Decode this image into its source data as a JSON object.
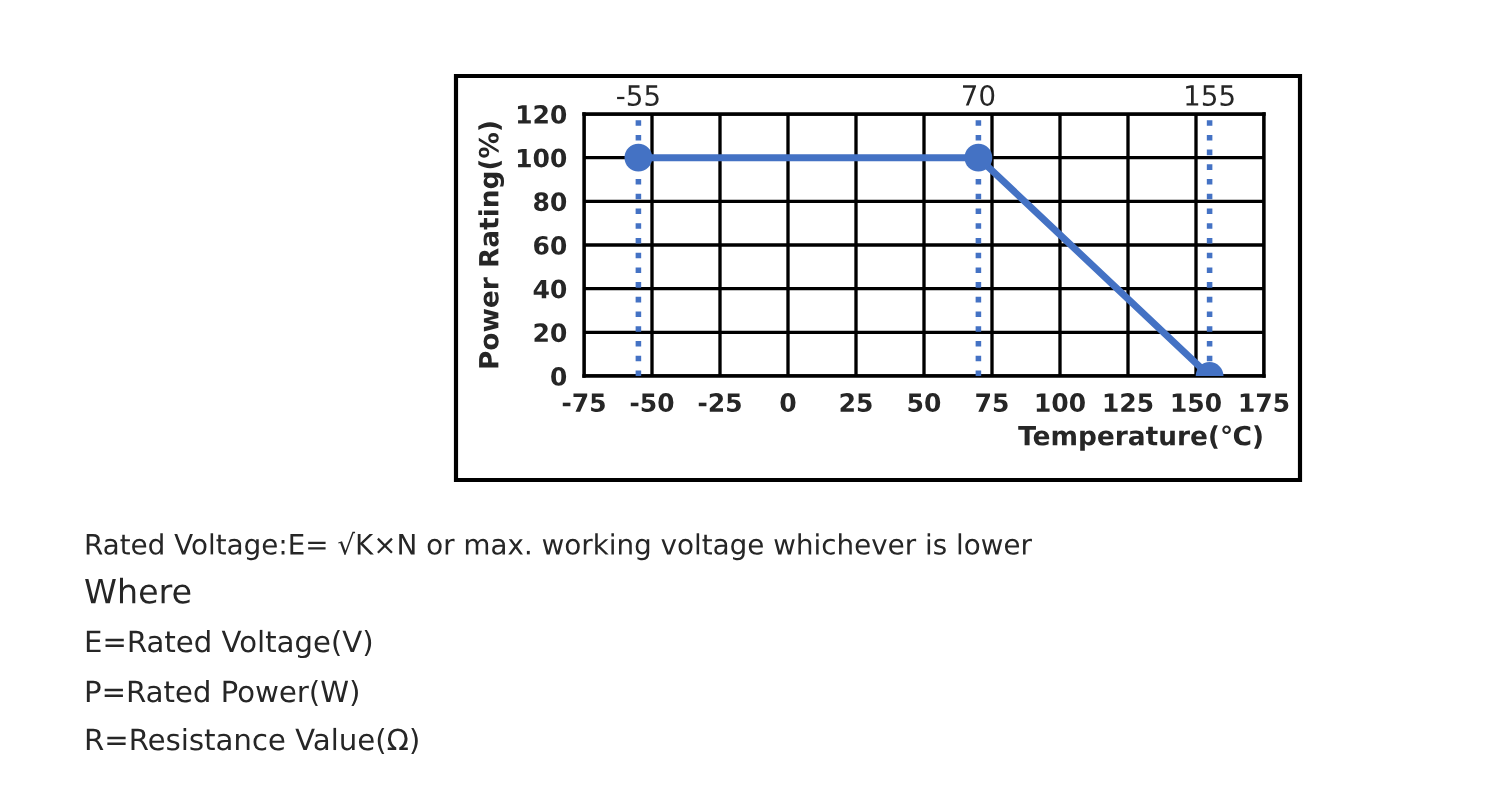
{
  "chart_data": {
    "type": "line",
    "xlabel": "Temperature(℃)",
    "ylabel": "Power Rating(%)",
    "x": [
      -55,
      70,
      155
    ],
    "series": [
      {
        "color": "#4472c4",
        "values": [
          100,
          100,
          0
        ]
      }
    ],
    "xlim": [
      -75,
      175
    ],
    "xticks": [
      -75,
      -50,
      -25,
      0,
      25,
      50,
      75,
      100,
      125,
      150,
      175
    ],
    "ylim": [
      0,
      120
    ],
    "yticks": [
      0,
      20,
      40,
      60,
      80,
      100,
      120
    ],
    "grid": true,
    "marker": "circle",
    "line_style": "solid",
    "ref_lines": [
      {
        "axis": "x",
        "value": -55,
        "label": "-55",
        "color": "#4472c4",
        "line_style": "dotted"
      },
      {
        "axis": "x",
        "value": 70,
        "label": "70",
        "color": "#4472c4",
        "line_style": "dotted"
      },
      {
        "axis": "x",
        "value": 155,
        "label": "155",
        "color": "#4472c4",
        "line_style": "dotted"
      }
    ],
    "annotations": [
      "Rated Voltage:E= √K×N or max. working voltage whichever is lower",
      "Where",
      "E=Rated Voltage(V)",
      "P=Rated Power(W)",
      "R=Resistance Value(Ω)"
    ]
  }
}
